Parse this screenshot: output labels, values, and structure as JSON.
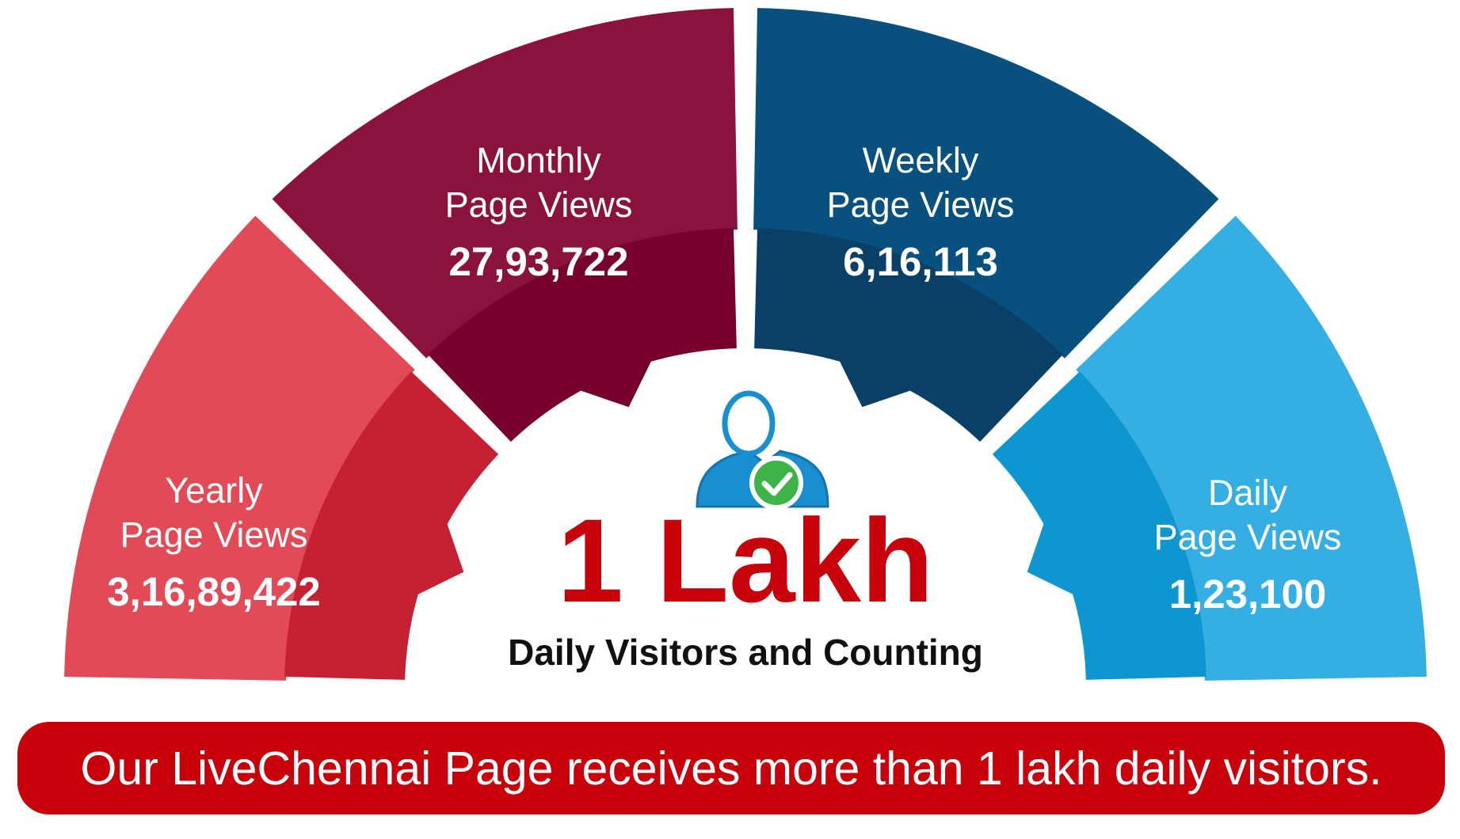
{
  "segments": [
    {
      "key": "yearly",
      "line1": "Yearly",
      "line2": "Page Views",
      "value": "3,16,89,422",
      "color": "#e24a57",
      "inner": "#c62033"
    },
    {
      "key": "monthly",
      "line1": "Monthly",
      "line2": "Page Views",
      "value": "27,93,722",
      "color": "#8b123d",
      "inner": "#76002b"
    },
    {
      "key": "weekly",
      "line1": "Weekly",
      "line2": "Page Views",
      "value": "6,16,113",
      "color": "#08507e",
      "inner": "#0a4068"
    },
    {
      "key": "daily",
      "line1": "Daily",
      "line2": "Page Views",
      "value": "1,23,100",
      "color": "#35afe3",
      "inner": "#0e96d1"
    }
  ],
  "center": {
    "headline": "1 Lakh",
    "caption": "Daily Visitors and Counting",
    "headline_color": "#c8000a",
    "icon": "verified-user-icon"
  },
  "banner": {
    "text": "Our LiveChennai Page receives more than 1 lakh daily visitors.",
    "color": "#c8000a"
  }
}
